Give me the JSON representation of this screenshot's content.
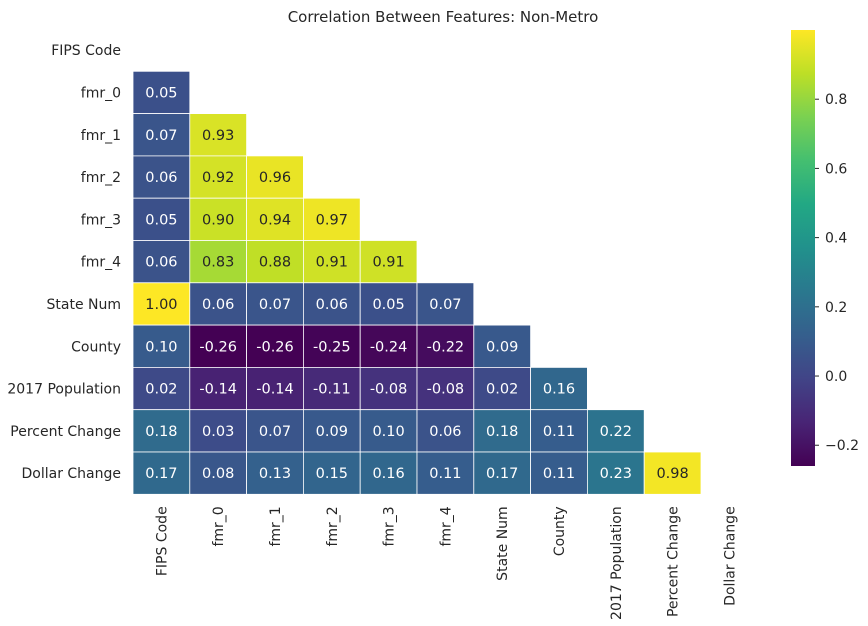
{
  "chart_data": {
    "type": "heatmap",
    "title": "Correlation Between Features: Non-Metro",
    "xlabel": "",
    "ylabel": "",
    "mask": "upper-triangle-including-diagonal",
    "labels": [
      "FIPS Code",
      "fmr_0",
      "fmr_1",
      "fmr_2",
      "fmr_3",
      "fmr_4",
      "State Num",
      "County",
      "2017 Population",
      "Percent Change",
      "Dollar Change"
    ],
    "matrix": [
      [
        null,
        null,
        null,
        null,
        null,
        null,
        null,
        null,
        null,
        null,
        null
      ],
      [
        0.05,
        null,
        null,
        null,
        null,
        null,
        null,
        null,
        null,
        null,
        null
      ],
      [
        0.07,
        0.93,
        null,
        null,
        null,
        null,
        null,
        null,
        null,
        null,
        null
      ],
      [
        0.06,
        0.92,
        0.96,
        null,
        null,
        null,
        null,
        null,
        null,
        null,
        null
      ],
      [
        0.05,
        0.9,
        0.94,
        0.97,
        null,
        null,
        null,
        null,
        null,
        null,
        null
      ],
      [
        0.06,
        0.83,
        0.88,
        0.91,
        0.91,
        null,
        null,
        null,
        null,
        null,
        null
      ],
      [
        1.0,
        0.06,
        0.07,
        0.06,
        0.05,
        0.07,
        null,
        null,
        null,
        null,
        null
      ],
      [
        0.1,
        -0.26,
        -0.26,
        -0.25,
        -0.24,
        -0.22,
        0.09,
        null,
        null,
        null,
        null
      ],
      [
        0.02,
        -0.14,
        -0.14,
        -0.11,
        -0.08,
        -0.08,
        0.02,
        0.16,
        null,
        null,
        null
      ],
      [
        0.18,
        0.03,
        0.07,
        0.09,
        0.1,
        0.06,
        0.18,
        0.11,
        0.22,
        null,
        null
      ],
      [
        0.17,
        0.08,
        0.13,
        0.15,
        0.16,
        0.11,
        0.17,
        0.11,
        0.23,
        0.98,
        null
      ]
    ],
    "value_format": "0.00",
    "colormap": "viridis",
    "vmin": -0.26,
    "vmax": 1.0,
    "colorbar_ticks": [
      "-0.2",
      "0.0",
      "0.2",
      "0.4",
      "0.6",
      "0.8"
    ],
    "grid": false,
    "legend": "colorbar-right"
  }
}
